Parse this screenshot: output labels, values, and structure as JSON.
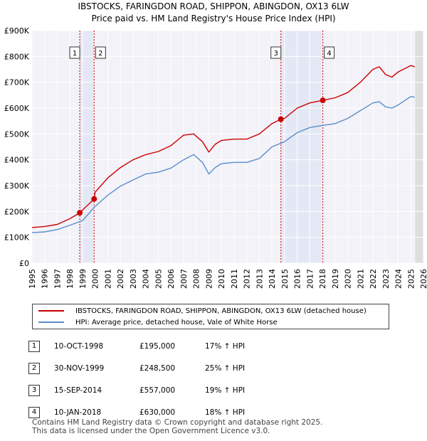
{
  "chart_data": {
    "type": "line",
    "title": "IBSTOCKS, FARINGDON ROAD, SHIPPON, ABINGDON, OX13 6LW",
    "subtitle": "Price paid vs. HM Land Registry's House Price Index (HPI)",
    "xlabel": "",
    "ylabel": "",
    "xlim": [
      1995,
      2026
    ],
    "ylim": [
      0,
      900000
    ],
    "x_ticks": [
      "1995",
      "1996",
      "1997",
      "1998",
      "1999",
      "2000",
      "2001",
      "2002",
      "2003",
      "2004",
      "2005",
      "2006",
      "2007",
      "2008",
      "2009",
      "2010",
      "2011",
      "2012",
      "2013",
      "2014",
      "2015",
      "2016",
      "2017",
      "2018",
      "2019",
      "2020",
      "2021",
      "2022",
      "2023",
      "2024",
      "2025",
      "2026"
    ],
    "y_ticks": [
      {
        "value": 0,
        "label": "£0"
      },
      {
        "value": 100000,
        "label": "£100K"
      },
      {
        "value": 200000,
        "label": "£200K"
      },
      {
        "value": 300000,
        "label": "£300K"
      },
      {
        "value": 400000,
        "label": "£400K"
      },
      {
        "value": 500000,
        "label": "£500K"
      },
      {
        "value": 600000,
        "label": "£600K"
      },
      {
        "value": 700000,
        "label": "£700K"
      },
      {
        "value": 800000,
        "label": "£800K"
      },
      {
        "value": 900000,
        "label": "£900K"
      }
    ],
    "grid": true,
    "series": [
      {
        "name": "IBSTOCKS, FARINGDON ROAD, SHIPPON, ABINGDON, OX13 6LW (detached house)",
        "color": "#cc0000",
        "x": [
          1995,
          1996,
          1997,
          1998,
          1998.78,
          1999,
          1999.92,
          2000,
          2001,
          2002,
          2003,
          2004,
          2005,
          2006,
          2007,
          2007.8,
          2008.5,
          2009,
          2009.5,
          2010,
          2011,
          2012,
          2013,
          2014,
          2014.71,
          2015,
          2016,
          2017,
          2018.03,
          2019,
          2020,
          2021,
          2022,
          2022.5,
          2023,
          2023.5,
          2024,
          2025,
          2025.3
        ],
        "y": [
          138000,
          142000,
          150000,
          172000,
          195000,
          206000,
          248500,
          275000,
          330000,
          370000,
          400000,
          420000,
          432000,
          455000,
          495000,
          500000,
          470000,
          430000,
          460000,
          475000,
          480000,
          480000,
          500000,
          540000,
          557000,
          560000,
          600000,
          620000,
          630000,
          640000,
          660000,
          700000,
          750000,
          760000,
          730000,
          720000,
          740000,
          765000,
          760000
        ]
      },
      {
        "name": "HPI: Average price, detached house, Vale of White Horse",
        "color": "#5b8ecb",
        "x": [
          1995,
          1996,
          1997,
          1998,
          1999,
          2000,
          2001,
          2002,
          2003,
          2004,
          2005,
          2006,
          2007,
          2007.8,
          2008.5,
          2009,
          2009.5,
          2010,
          2011,
          2012,
          2013,
          2014,
          2015,
          2016,
          2017,
          2018,
          2019,
          2020,
          2021,
          2022,
          2022.5,
          2023,
          2023.5,
          2024,
          2025,
          2025.3
        ],
        "y": [
          118000,
          121000,
          130000,
          147000,
          165000,
          220000,
          263000,
          298000,
          322000,
          345000,
          352000,
          368000,
          400000,
          420000,
          390000,
          345000,
          370000,
          385000,
          390000,
          390000,
          405000,
          450000,
          470000,
          505000,
          525000,
          533000,
          540000,
          560000,
          590000,
          620000,
          625000,
          605000,
          600000,
          612000,
          645000,
          642000
        ]
      }
    ],
    "sales": [
      {
        "id": "1",
        "x": 1998.78,
        "value": 195000
      },
      {
        "id": "2",
        "x": 1999.92,
        "value": 248500
      },
      {
        "id": "3",
        "x": 2014.71,
        "value": 557000
      },
      {
        "id": "4",
        "x": 2018.03,
        "value": 630000
      }
    ]
  },
  "legend": {
    "items": [
      {
        "label": "IBSTOCKS, FARINGDON ROAD, SHIPPON, ABINGDON, OX13 6LW (detached house)",
        "color": "#cc0000"
      },
      {
        "label": "HPI: Average price, detached house, Vale of White Horse",
        "color": "#5b8ecb"
      }
    ]
  },
  "sales_table": [
    {
      "num": "1",
      "date": "10-OCT-1998",
      "price": "£195,000",
      "hpi": "17% ↑ HPI"
    },
    {
      "num": "2",
      "date": "30-NOV-1999",
      "price": "£248,500",
      "hpi": "25% ↑ HPI"
    },
    {
      "num": "3",
      "date": "15-SEP-2014",
      "price": "£557,000",
      "hpi": "19% ↑ HPI"
    },
    {
      "num": "4",
      "date": "10-JAN-2018",
      "price": "£630,000",
      "hpi": "18% ↑ HPI"
    }
  ],
  "footer": {
    "line1": "Contains HM Land Registry data © Crown copyright and database right 2025.",
    "line2": "This data is licensed under the Open Government Licence v3.0."
  },
  "colors": {
    "background": "#ffffff",
    "plot_bg": "#f2f2f8",
    "shade": "#e4e8f4",
    "grid": "#ffffff",
    "marker_line": "#cc0000"
  }
}
